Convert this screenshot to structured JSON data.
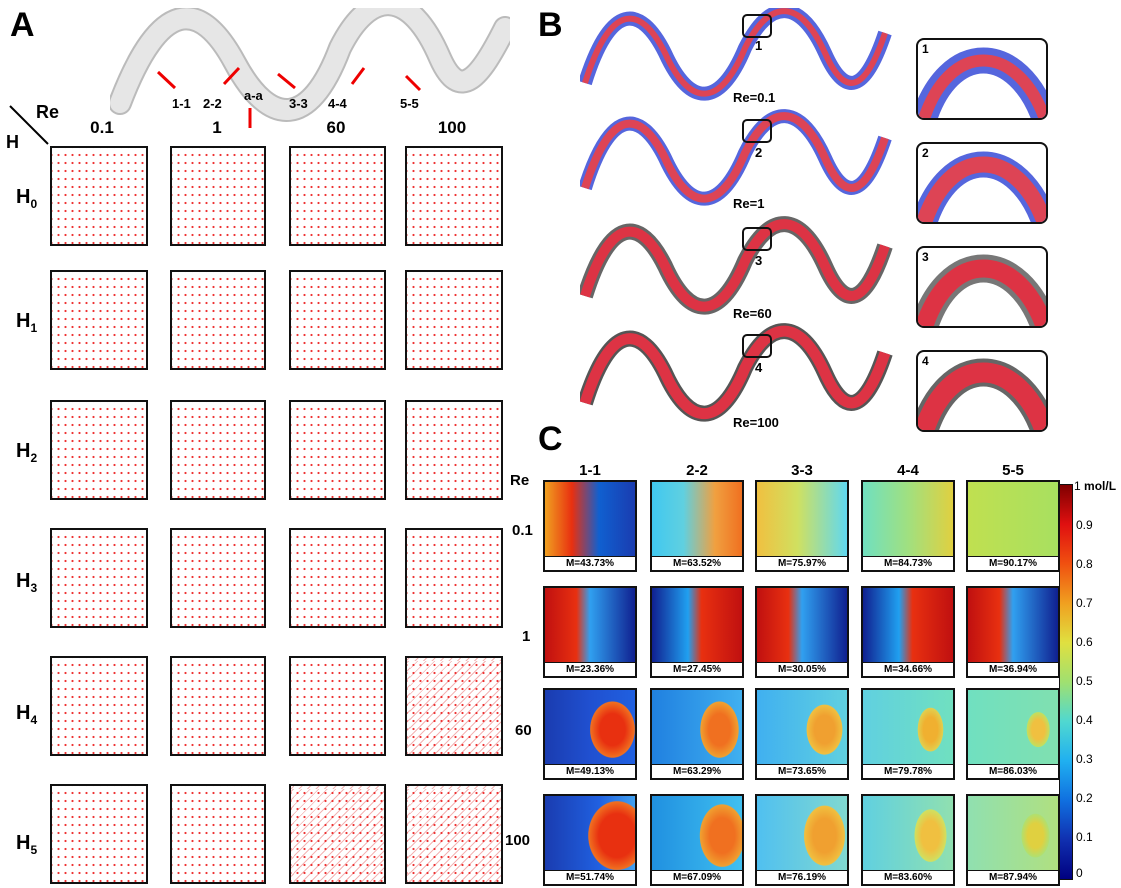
{
  "panels": {
    "a": "A",
    "b": "B",
    "c": "C"
  },
  "panel_a": {
    "corner_re": "Re",
    "corner_h": "H",
    "re_headers": [
      "0.1",
      "1",
      "60",
      "100"
    ],
    "h_rows": [
      {
        "base": "H",
        "sub": "0"
      },
      {
        "base": "H",
        "sub": "1"
      },
      {
        "base": "H",
        "sub": "2"
      },
      {
        "base": "H",
        "sub": "3"
      },
      {
        "base": "H",
        "sub": "4"
      },
      {
        "base": "H",
        "sub": "5"
      }
    ],
    "cut_labels": [
      "1-1",
      "2-2",
      "a-a",
      "3-3",
      "4-4",
      "5-5"
    ]
  },
  "panel_b": {
    "re_labels": [
      "Re=0.1",
      "Re=1",
      "Re=60",
      "Re=100"
    ],
    "zoom_numbers": [
      "1",
      "2",
      "3",
      "4"
    ]
  },
  "panel_c": {
    "corner": "Re",
    "col_headers": [
      "1-1",
      "2-2",
      "3-3",
      "4-4",
      "5-5"
    ],
    "row_labels": [
      "0.1",
      "1",
      "60",
      "100"
    ],
    "m_values": [
      [
        "M=43.73%",
        "M=63.52%",
        "M=75.97%",
        "M=84.73%",
        "M=90.17%"
      ],
      [
        "M=23.36%",
        "M=27.45%",
        "M=30.05%",
        "M=34.66%",
        "M=36.94%"
      ],
      [
        "M=49.13%",
        "M=63.29%",
        "M=73.65%",
        "M=79.78%",
        "M=86.03%"
      ],
      [
        "M=51.74%",
        "M=67.09%",
        "M=76.19%",
        "M=83.60%",
        "M=87.94%"
      ]
    ],
    "colorbar": {
      "unit": "mol/L",
      "ticks": [
        "1",
        "0.9",
        "0.8",
        "0.7",
        "0.6",
        "0.5",
        "0.4",
        "0.3",
        "0.2",
        "0.1",
        "0"
      ]
    }
  }
}
